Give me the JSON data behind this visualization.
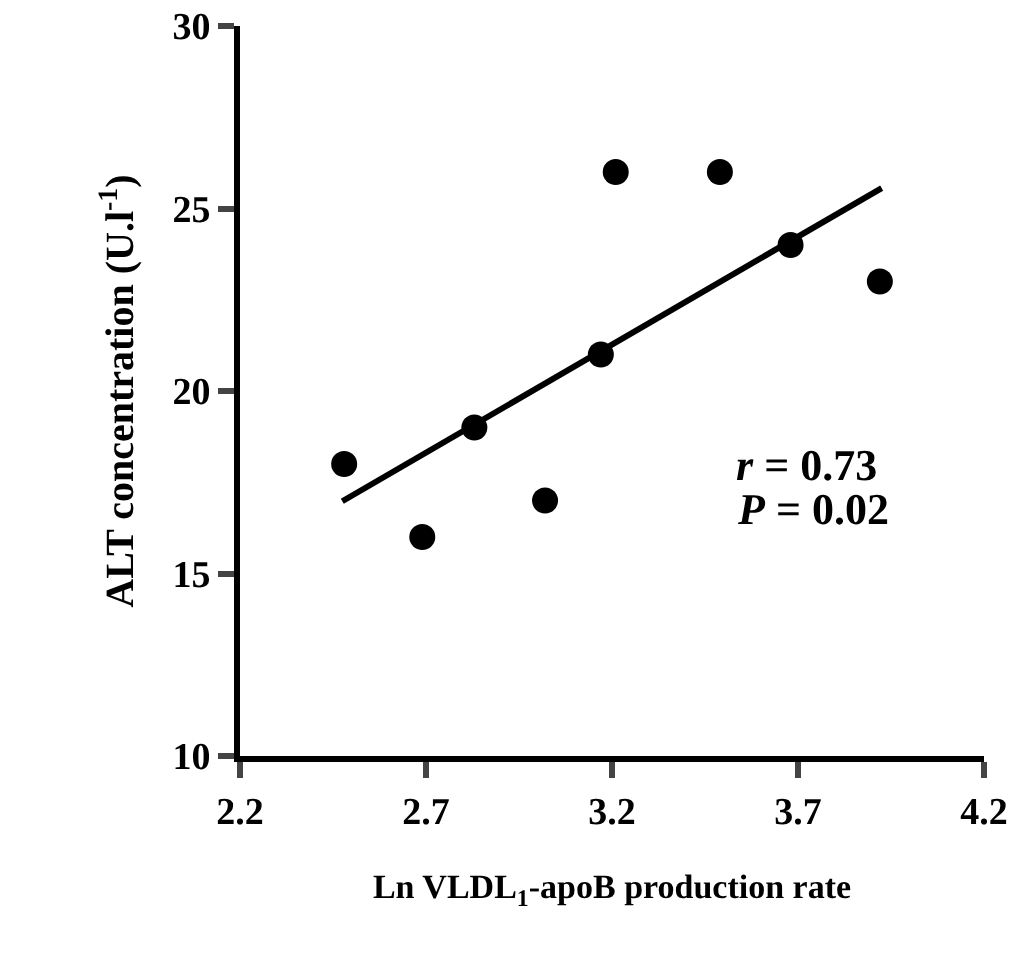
{
  "chart_data": {
    "type": "scatter",
    "xlabel": "Ln VLDL$_{1}$-apoB production rate",
    "ylabel": "ALT concentration (U.l$^{-1}$)",
    "xlim": [
      2.2,
      4.2
    ],
    "xticks": [
      2.2,
      2.7,
      3.2,
      3.7,
      4.2
    ],
    "ylim": [
      10,
      30
    ],
    "yticks": [
      10,
      15,
      20,
      25,
      30
    ],
    "series": [
      {
        "marker": "circle",
        "color": "#000000",
        "x": [
          2.48,
          2.69,
          2.83,
          3.02,
          3.17,
          3.21,
          3.49,
          3.68,
          3.92
        ],
        "values": [
          18,
          16,
          19,
          17,
          21,
          26,
          26,
          24,
          23
        ]
      },
      {
        "type": "line",
        "marker": "none",
        "color": "#000000",
        "x": [
          2.475,
          3.925
        ],
        "values": [
          16.98,
          25.56
        ]
      }
    ],
    "annotations": [
      "r = 0.73",
      "P = 0.02"
    ]
  }
}
